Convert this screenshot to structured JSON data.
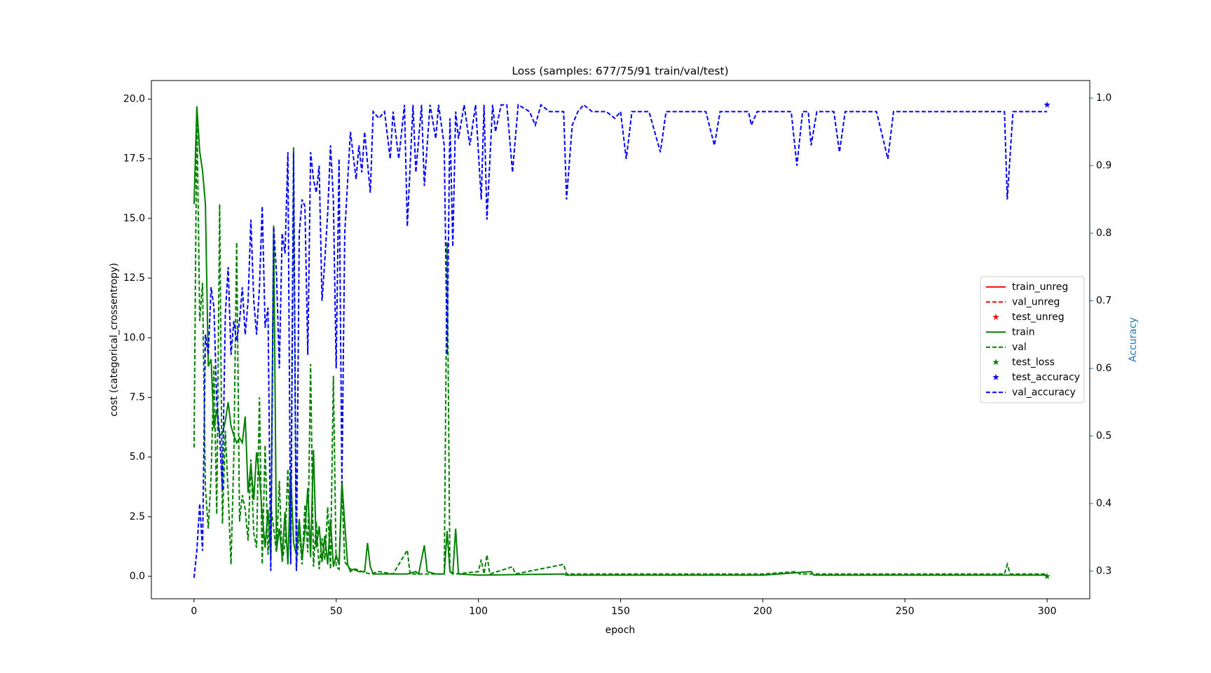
{
  "chart_data": {
    "type": "line",
    "title": "Loss (samples: 677/75/91 train/val/test)",
    "xlabel": "epoch",
    "ylabel": "cost (categorical_crossentropy)",
    "y2label": "Accuracy",
    "y2color": "#1f77b4",
    "xlim": [
      -15,
      315
    ],
    "ylim": [
      -0.94,
      20.78
    ],
    "y2lim": [
      0.259,
      1.026
    ],
    "xticks": [
      0,
      50,
      100,
      150,
      200,
      250,
      300
    ],
    "yticks": [
      {
        "value": 0,
        "label": "0.0"
      },
      2.5,
      {
        "value": 5,
        "label": "5.0"
      },
      7.5,
      {
        "value": 10,
        "label": "10.0"
      },
      12.5,
      {
        "value": 15,
        "label": "15.0"
      },
      17.5,
      {
        "value": 20,
        "label": "20.0"
      }
    ],
    "y2ticks": [
      0.3,
      0.4,
      0.5,
      0.6,
      0.7,
      0.8,
      0.9,
      {
        "value": 1,
        "label": "1.0"
      }
    ],
    "legend": "center right",
    "series": [
      {
        "name": "train_unreg",
        "color": "#ff0000",
        "style": "solid",
        "x": [],
        "values": []
      },
      {
        "name": "val_unreg",
        "color": "#ff0000",
        "style": "dashed",
        "x": [],
        "values": []
      },
      {
        "name": "test_unreg",
        "color": "#ff0000",
        "style": "star",
        "x": [],
        "values": []
      },
      {
        "name": "train",
        "color": "#008000",
        "style": "solid",
        "x": [
          0,
          1,
          2,
          3,
          4,
          5,
          6,
          7,
          8,
          9,
          10,
          11,
          12,
          13,
          14,
          15,
          16,
          17,
          18,
          19,
          20,
          21,
          22,
          23,
          24,
          25,
          26,
          27,
          28,
          29,
          30,
          31,
          32,
          33,
          34,
          35,
          36,
          37,
          38,
          39,
          40,
          41,
          42,
          43,
          44,
          45,
          46,
          47,
          48,
          49,
          50,
          51,
          52,
          53,
          54,
          55,
          56,
          58,
          60,
          61,
          62,
          63,
          70,
          75,
          78,
          79,
          81,
          82,
          85,
          88,
          89,
          90,
          91,
          92,
          93,
          100,
          130,
          131,
          150,
          200,
          217,
          218,
          250,
          300
        ],
        "values": [
          15.6,
          19.7,
          17.8,
          17,
          15.6,
          8.8,
          9.1,
          6.2,
          7,
          5.9,
          6,
          6.5,
          7.3,
          6.3,
          5.9,
          5.6,
          5.8,
          5.6,
          6.7,
          3.5,
          4.7,
          3.2,
          5.2,
          4.2,
          2.6,
          1.2,
          2.8,
          0.8,
          14.7,
          1.1,
          2.0,
          0.8,
          2.7,
          0.5,
          4.4,
          1.4,
          0.9,
          2.4,
          0.7,
          1.9,
          3.7,
          0.8,
          5.3,
          1.2,
          2.1,
          0.6,
          1.7,
          0.5,
          2.4,
          0.4,
          0.9,
          0.5,
          4.0,
          2.2,
          0.5,
          0.2,
          0.3,
          0.2,
          0.2,
          1.4,
          0.4,
          0.1,
          0.1,
          0.1,
          0.2,
          0.1,
          1.3,
          0.2,
          0.1,
          0.1,
          1.9,
          0.2,
          0.1,
          2.0,
          0.1,
          0.05,
          0.1,
          0.05,
          0.05,
          0.05,
          0.2,
          0.05,
          0.05,
          0.05
        ]
      },
      {
        "name": "val",
        "color": "#008000",
        "style": "dashed",
        "x": [
          0,
          1,
          2,
          3,
          4,
          5,
          6,
          7,
          8,
          9,
          10,
          11,
          12,
          13,
          14,
          15,
          16,
          17,
          18,
          19,
          20,
          21,
          22,
          23,
          24,
          25,
          26,
          27,
          28,
          29,
          30,
          31,
          32,
          33,
          34,
          35,
          36,
          37,
          38,
          39,
          40,
          41,
          42,
          43,
          44,
          45,
          46,
          47,
          48,
          49,
          50,
          51,
          52,
          53,
          55,
          57,
          59,
          62,
          65,
          70,
          75,
          76,
          80,
          85,
          88,
          89,
          90,
          92,
          100,
          101,
          102,
          103,
          104,
          112,
          113,
          130,
          131,
          150,
          200,
          212,
          213,
          285,
          286,
          287,
          300
        ],
        "values": [
          5.4,
          19.6,
          10.7,
          12.3,
          3.7,
          2.0,
          4.2,
          8.8,
          2.6,
          15.6,
          2.2,
          6.1,
          3.5,
          0.5,
          5.1,
          14.0,
          2.3,
          3.4,
          2.8,
          1.5,
          4.9,
          1.8,
          1.2,
          7.5,
          0.5,
          5.5,
          0.9,
          3.0,
          2.0,
          1.0,
          4.0,
          0.6,
          1.4,
          4.5,
          0.8,
          18.0,
          0.3,
          1.9,
          0.5,
          3.0,
          1.0,
          8.9,
          0.4,
          2.3,
          0.3,
          1.6,
          0.7,
          2.9,
          0.3,
          8.4,
          0.4,
          0.3,
          3.7,
          0.6,
          0.3,
          0.3,
          0.2,
          0.1,
          0.2,
          0.1,
          1.1,
          0.1,
          0.1,
          0.1,
          0.1,
          14.0,
          0.2,
          0.1,
          0.2,
          0.7,
          0.1,
          0.9,
          0.1,
          0.4,
          0.1,
          0.5,
          0.1,
          0.1,
          0.1,
          0.2,
          0.1,
          0.1,
          0.5,
          0.1,
          0.1
        ]
      },
      {
        "name": "test_loss",
        "color": "#008000",
        "style": "star",
        "x": [
          300
        ],
        "values": [
          0.0
        ]
      },
      {
        "name": "test_accuracy",
        "color": "#0000ff",
        "style": "star",
        "axis": "y2",
        "x": [
          300
        ],
        "values": [
          0.99
        ]
      },
      {
        "name": "val_accuracy",
        "color": "#0000ff",
        "style": "dashed",
        "axis": "y2",
        "x": [
          0,
          1,
          2,
          3,
          4,
          5,
          6,
          7,
          8,
          9,
          10,
          11,
          12,
          13,
          14,
          15,
          16,
          17,
          18,
          19,
          20,
          21,
          22,
          23,
          24,
          25,
          26,
          27,
          28,
          29,
          30,
          31,
          32,
          33,
          34,
          35,
          36,
          37,
          38,
          39,
          40,
          41,
          42,
          43,
          44,
          45,
          46,
          47,
          48,
          49,
          50,
          51,
          52,
          53,
          55,
          57,
          58,
          59,
          60,
          62,
          63,
          65,
          67,
          69,
          70,
          72,
          74,
          75,
          77,
          78,
          80,
          81,
          83,
          85,
          86,
          88,
          89,
          90,
          91,
          92,
          93,
          95,
          97,
          99,
          101,
          102,
          103,
          105,
          106,
          108,
          110,
          112,
          114,
          118,
          120,
          122,
          125,
          130,
          131,
          133,
          135,
          137,
          140,
          145,
          148,
          150,
          152,
          154,
          160,
          164,
          166,
          180,
          183,
          185,
          195,
          196,
          198,
          210,
          212,
          214,
          216,
          217,
          219,
          225,
          227,
          229,
          240,
          244,
          246,
          280,
          285,
          286,
          288,
          300
        ],
        "values": [
          0.29,
          0.33,
          0.4,
          0.33,
          0.65,
          0.62,
          0.72,
          0.69,
          0.55,
          0.5,
          0.42,
          0.68,
          0.75,
          0.62,
          0.67,
          0.64,
          0.67,
          0.72,
          0.65,
          0.7,
          0.82,
          0.7,
          0.65,
          0.72,
          0.84,
          0.66,
          0.69,
          0.3,
          0.81,
          0.74,
          0.6,
          0.8,
          0.77,
          0.92,
          0.31,
          0.92,
          0.3,
          0.8,
          0.85,
          0.84,
          0.62,
          0.92,
          0.88,
          0.86,
          0.9,
          0.7,
          0.76,
          0.83,
          0.93,
          0.85,
          0.6,
          0.91,
          0.43,
          0.8,
          0.95,
          0.88,
          0.93,
          0.89,
          0.95,
          0.86,
          0.98,
          0.97,
          0.98,
          0.91,
          0.98,
          0.91,
          0.99,
          0.81,
          0.99,
          0.89,
          0.99,
          0.87,
          0.99,
          0.94,
          0.99,
          0.93,
          0.62,
          0.97,
          0.78,
          0.98,
          0.94,
          0.99,
          0.93,
          0.99,
          0.85,
          0.99,
          0.82,
          0.99,
          0.95,
          0.99,
          0.99,
          0.89,
          0.99,
          0.98,
          0.96,
          0.99,
          0.98,
          0.98,
          0.85,
          0.96,
          0.98,
          0.99,
          0.98,
          0.98,
          0.97,
          0.98,
          0.91,
          0.98,
          0.98,
          0.92,
          0.98,
          0.98,
          0.93,
          0.98,
          0.98,
          0.96,
          0.98,
          0.98,
          0.9,
          0.98,
          0.98,
          0.93,
          0.98,
          0.98,
          0.92,
          0.98,
          0.98,
          0.91,
          0.98,
          0.98,
          0.98,
          0.85,
          0.98,
          0.98
        ]
      }
    ]
  }
}
